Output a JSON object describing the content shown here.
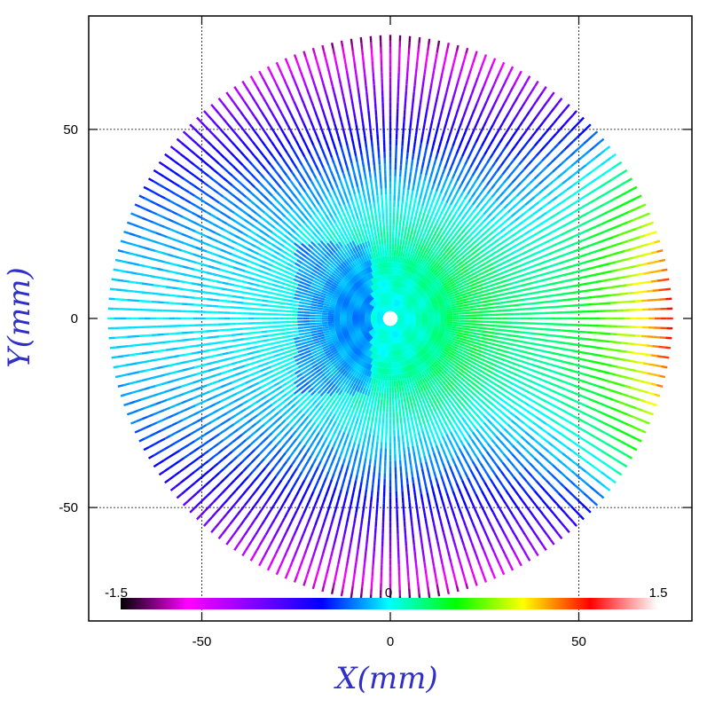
{
  "chart_data": {
    "type": "scatter",
    "title": "",
    "xlabel": "X(mm)",
    "ylabel": "Y(mm)",
    "xlim": [
      -80,
      80
    ],
    "ylim": [
      -80,
      80
    ],
    "xticks": [
      -50,
      0,
      50
    ],
    "yticks": [
      -50,
      0,
      50
    ],
    "x_tick_labels": [
      "-50",
      "0",
      "50"
    ],
    "y_tick_labels": [
      "-50",
      "0",
      "50"
    ],
    "grid": true,
    "grid_style": "dotted",
    "pattern": "radial spokes",
    "spoke_count": 180,
    "radius_max": 75,
    "colorbar": {
      "min": -1.5,
      "max": 1.5,
      "labels": [
        "-1.5",
        "0",
        "1.5"
      ],
      "colormap": [
        "#000000",
        "#ff00ff",
        "#8000ff",
        "#0000ff",
        "#00ffff",
        "#00ff00",
        "#ffff00",
        "#ff0000",
        "#ffffff"
      ]
    },
    "label_color": "#3030c8"
  }
}
